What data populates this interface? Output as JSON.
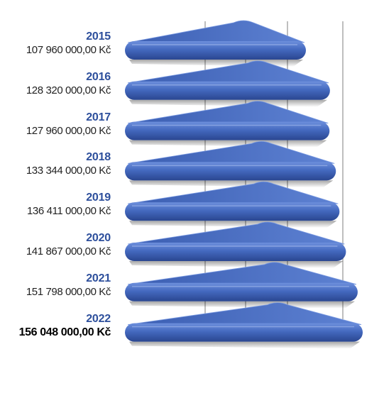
{
  "chart_data": {
    "type": "bar",
    "orientation": "horizontal",
    "style": "3d-slanted-bars",
    "categories": [
      "2015",
      "2016",
      "2017",
      "2018",
      "2019",
      "2020",
      "2021",
      "2022"
    ],
    "value_labels": [
      "107 960 000,00 Kč",
      "128 320 000,00 Kč",
      "127 960 000,00 Kč",
      "133 344 000,00 Kč",
      "136 411 000,00 Kč",
      "141 867 000,00 Kč",
      "151 798 000,00 Kč",
      "156 048 000,00 Kč"
    ],
    "values": [
      107960000,
      128320000,
      127960000,
      133344000,
      136411000,
      141867000,
      151798000,
      156048000
    ],
    "highlighted_category": "2022",
    "currency": "Kč",
    "grid": true,
    "legend": "none",
    "colors": {
      "bar_top": "#5b7fd0",
      "bar_face": "#3f63b8",
      "bar_shadow": "#233a7a",
      "year_label": "#2d4f9c",
      "gridline": "#a9a9a9"
    }
  }
}
